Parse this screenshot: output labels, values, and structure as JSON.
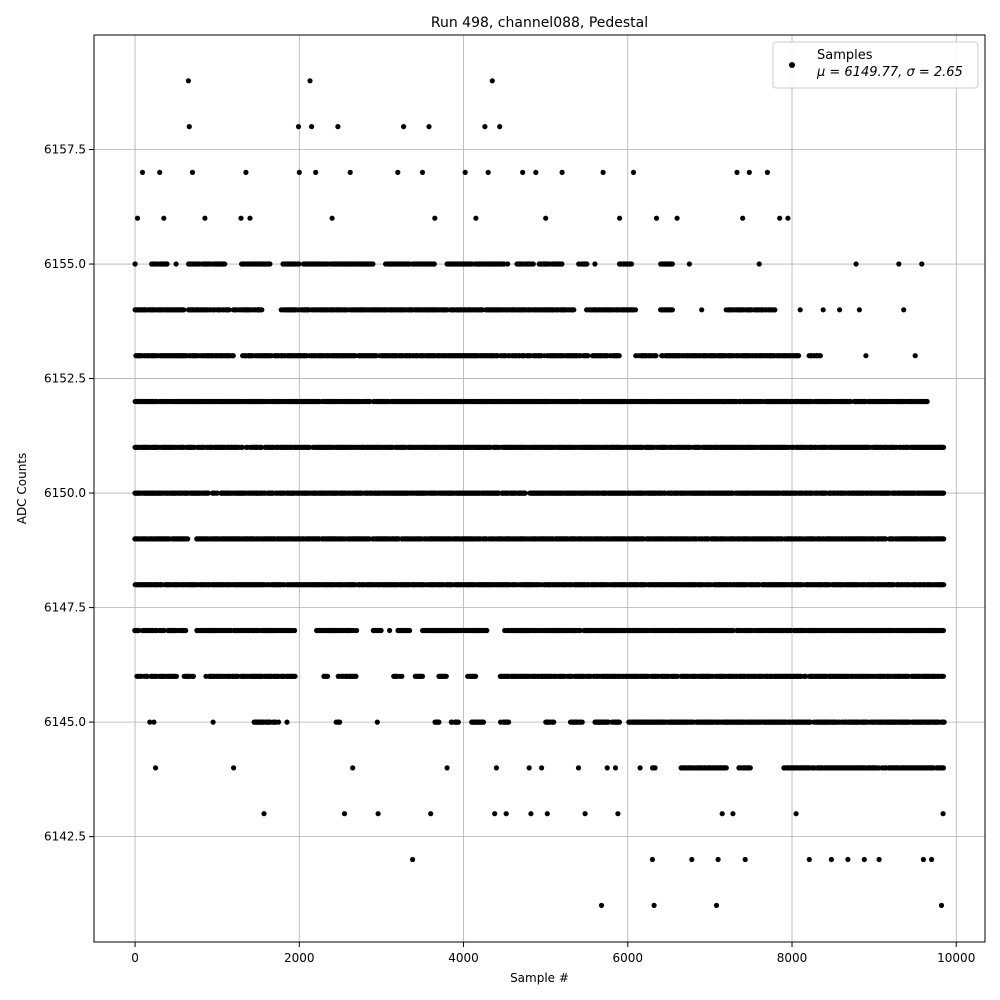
{
  "chart_data": {
    "type": "scatter",
    "title": "Run 498, channel088, Pedestal",
    "xlabel": "Sample #",
    "ylabel": "ADC Counts",
    "xlim": [
      -500,
      10350
    ],
    "ylim": [
      6140.2,
      6160.0
    ],
    "xticks": [
      0,
      2000,
      4000,
      6000,
      8000,
      10000
    ],
    "xtick_labels": [
      "0",
      "2000",
      "4000",
      "6000",
      "8000",
      "10000"
    ],
    "yticks": [
      6142.5,
      6145.0,
      6147.5,
      6150.0,
      6152.5,
      6155.0,
      6157.5
    ],
    "ytick_labels": [
      "6142.5",
      "6145.0",
      "6147.5",
      "6150.0",
      "6152.5",
      "6155.0",
      "6157.5"
    ],
    "grid": true,
    "legend_position": "top-right",
    "series": [
      {
        "name": "Samples",
        "stats_label": "μ = 6149.77, σ = 2.65",
        "color": "#000000",
        "marker": "dot",
        "points": [
          [
            0,
            6155
          ],
          [
            10,
            6154
          ],
          [
            30,
            6156
          ],
          [
            50,
            6153
          ],
          [
            70,
            6152
          ],
          [
            90,
            6157
          ],
          [
            110,
            6154
          ],
          [
            150,
            6151
          ],
          [
            180,
            6145
          ],
          [
            230,
            6145
          ],
          [
            250,
            6144
          ],
          [
            300,
            6157
          ],
          [
            350,
            6156
          ],
          [
            420,
            6153
          ],
          [
            500,
            6155
          ],
          [
            600,
            6152
          ],
          [
            650,
            6159
          ],
          [
            660,
            6158
          ],
          [
            700,
            6157
          ],
          [
            760,
            6154
          ],
          [
            850,
            6156
          ],
          [
            950,
            6145
          ],
          [
            1000,
            6155
          ],
          [
            1100,
            6153
          ],
          [
            1200,
            6144
          ],
          [
            1290,
            6156
          ],
          [
            1350,
            6157
          ],
          [
            1400,
            6156
          ],
          [
            1500,
            6154
          ],
          [
            1570,
            6143
          ],
          [
            1650,
            6146
          ],
          [
            1780,
            6154
          ],
          [
            1850,
            6145
          ],
          [
            1900,
            6153
          ],
          [
            1990,
            6158
          ],
          [
            2000,
            6157
          ],
          [
            2100,
            6154
          ],
          [
            2130,
            6159
          ],
          [
            2150,
            6158
          ],
          [
            2200,
            6157
          ],
          [
            2300,
            6146
          ],
          [
            2400,
            6156
          ],
          [
            2470,
            6158
          ],
          [
            2550,
            6143
          ],
          [
            2620,
            6157
          ],
          [
            2650,
            6144
          ],
          [
            2800,
            6155
          ],
          [
            2950,
            6145
          ],
          [
            2960,
            6143
          ],
          [
            3100,
            6147
          ],
          [
            3200,
            6157
          ],
          [
            3270,
            6158
          ],
          [
            3380,
            6142
          ],
          [
            3500,
            6157
          ],
          [
            3580,
            6158
          ],
          [
            3600,
            6143
          ],
          [
            3650,
            6156
          ],
          [
            3700,
            6145
          ],
          [
            3800,
            6144
          ],
          [
            4000,
            6155
          ],
          [
            4020,
            6157
          ],
          [
            4150,
            6156
          ],
          [
            4260,
            6158
          ],
          [
            4300,
            6157
          ],
          [
            4350,
            6159
          ],
          [
            4380,
            6143
          ],
          [
            4400,
            6144
          ],
          [
            4440,
            6158
          ],
          [
            4520,
            6143
          ],
          [
            4600,
            6154
          ],
          [
            4720,
            6157
          ],
          [
            4800,
            6144
          ],
          [
            4820,
            6143
          ],
          [
            4880,
            6157
          ],
          [
            4950,
            6144
          ],
          [
            5000,
            6156
          ],
          [
            5020,
            6143
          ],
          [
            5200,
            6157
          ],
          [
            5400,
            6144
          ],
          [
            5480,
            6143
          ],
          [
            5600,
            6155
          ],
          [
            5680,
            6141
          ],
          [
            5700,
            6157
          ],
          [
            5750,
            6144
          ],
          [
            5850,
            6144
          ],
          [
            5880,
            6143
          ],
          [
            5900,
            6156
          ],
          [
            6000,
            6155
          ],
          [
            6070,
            6157
          ],
          [
            6150,
            6144
          ],
          [
            6300,
            6142
          ],
          [
            6320,
            6141
          ],
          [
            6350,
            6156
          ],
          [
            6500,
            6155
          ],
          [
            6600,
            6156
          ],
          [
            6750,
            6155
          ],
          [
            6780,
            6142
          ],
          [
            6900,
            6154
          ],
          [
            7080,
            6141
          ],
          [
            7100,
            6142
          ],
          [
            7150,
            6143
          ],
          [
            7280,
            6143
          ],
          [
            7330,
            6157
          ],
          [
            7400,
            6156
          ],
          [
            7430,
            6142
          ],
          [
            7480,
            6157
          ],
          [
            7600,
            6155
          ],
          [
            7700,
            6157
          ],
          [
            7850,
            6156
          ],
          [
            7950,
            6156
          ],
          [
            8000,
            6144
          ],
          [
            8050,
            6143
          ],
          [
            8100,
            6154
          ],
          [
            8210,
            6142
          ],
          [
            8300,
            6153
          ],
          [
            8380,
            6154
          ],
          [
            8480,
            6142
          ],
          [
            8580,
            6154
          ],
          [
            8680,
            6142
          ],
          [
            8780,
            6155
          ],
          [
            8820,
            6154
          ],
          [
            8880,
            6142
          ],
          [
            8900,
            6153
          ],
          [
            9060,
            6142
          ],
          [
            9300,
            6155
          ],
          [
            9360,
            6154
          ],
          [
            9500,
            6153
          ],
          [
            9580,
            6155
          ],
          [
            9600,
            6142
          ],
          [
            9700,
            6142
          ],
          [
            9800,
            6151
          ],
          [
            9820,
            6141
          ],
          [
            9840,
            6143
          ]
        ],
        "bands": [
          {
            "value": 6146,
            "segments": [
              [
                20,
                520
              ],
              [
                600,
                720
              ],
              [
                850,
                1950
              ],
              [
                2300,
                2350
              ],
              [
                2450,
                2700
              ],
              [
                3150,
                3250
              ],
              [
                3400,
                3500
              ],
              [
                3700,
                3800
              ],
              [
                4050,
                4150
              ],
              [
                4450,
                9850
              ]
            ]
          },
          {
            "value": 6147,
            "segments": [
              [
                0,
                360
              ],
              [
                400,
                620
              ],
              [
                750,
                1500
              ],
              [
                1500,
                1950
              ],
              [
                2200,
                2700
              ],
              [
                2900,
                3000
              ],
              [
                3200,
                3350
              ],
              [
                3500,
                4300
              ],
              [
                4500,
                9850
              ]
            ]
          },
          {
            "value": 6148,
            "segments": [
              [
                0,
                9850
              ]
            ]
          },
          {
            "value": 6149,
            "segments": [
              [
                0,
                650
              ],
              [
                750,
                9850
              ]
            ]
          },
          {
            "value": 6150,
            "segments": [
              [
                0,
                9850
              ]
            ]
          },
          {
            "value": 6151,
            "segments": [
              [
                0,
                9850
              ]
            ]
          },
          {
            "value": 6152,
            "segments": [
              [
                0,
                9650
              ]
            ]
          },
          {
            "value": 6153,
            "segments": [
              [
                0,
                1200
              ],
              [
                1300,
                5900
              ],
              [
                6100,
                6350
              ],
              [
                6400,
                8100
              ],
              [
                8200,
                8350
              ]
            ]
          },
          {
            "value": 6154,
            "segments": [
              [
                0,
                600
              ],
              [
                650,
                1150
              ],
              [
                1200,
                1550
              ],
              [
                1800,
                5350
              ],
              [
                5500,
                6100
              ],
              [
                6400,
                6550
              ],
              [
                7200,
                7800
              ]
            ]
          },
          {
            "value": 6155,
            "segments": [
              [
                200,
                400
              ],
              [
                650,
                1100
              ],
              [
                1300,
                1650
              ],
              [
                1800,
                2000
              ],
              [
                2050,
                2900
              ],
              [
                3050,
                3650
              ],
              [
                3800,
                4550
              ],
              [
                4650,
                4850
              ],
              [
                4900,
                5200
              ],
              [
                5400,
                5500
              ],
              [
                5900,
                6050
              ],
              [
                6400,
                6550
              ]
            ]
          },
          {
            "value": 6145,
            "segments": [
              [
                1450,
                1750
              ],
              [
                2450,
                2500
              ],
              [
                3650,
                3700
              ],
              [
                3850,
                3950
              ],
              [
                4100,
                4250
              ],
              [
                4450,
                4550
              ],
              [
                5000,
                5100
              ],
              [
                5300,
                5450
              ],
              [
                5600,
                5900
              ],
              [
                6000,
                9850
              ]
            ]
          },
          {
            "value": 6144,
            "segments": [
              [
                6300,
                6350
              ],
              [
                6650,
                7200
              ],
              [
                7350,
                7500
              ],
              [
                7900,
                9850
              ]
            ]
          }
        ]
      }
    ]
  }
}
